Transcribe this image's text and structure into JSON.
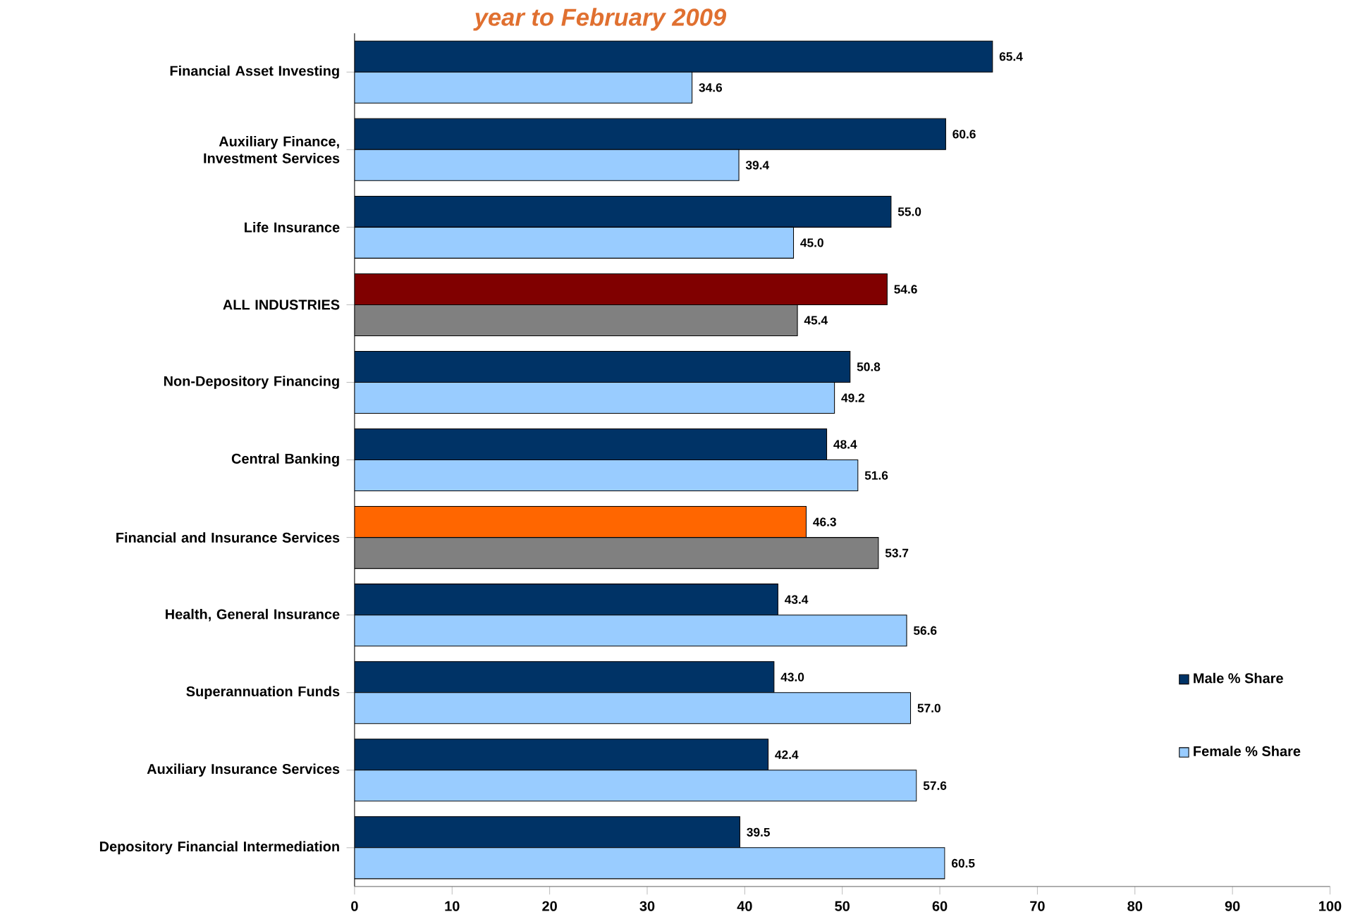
{
  "chart_data": {
    "type": "bar",
    "orientation": "horizontal",
    "title": "year to February 2009",
    "categories": [
      "Financial Asset Investing",
      "Auxiliary Finance, Investment Services",
      "Life Insurance",
      "ALL INDUSTRIES",
      "Non-Depository Financing",
      "Central Banking",
      "Financial and Insurance Services",
      "Health, General Insurance",
      "Superannuation Funds",
      "Auxiliary Insurance Services",
      "Depository Financial Intermediation"
    ],
    "series": [
      {
        "name": "Male % Share",
        "color": "#003366",
        "colors": [
          "#003366",
          "#003366",
          "#003366",
          "#800000",
          "#003366",
          "#003366",
          "#ff6600",
          "#003366",
          "#003366",
          "#003366",
          "#003366"
        ],
        "values": [
          65.4,
          60.6,
          55.0,
          54.6,
          50.8,
          48.4,
          46.3,
          43.4,
          43.0,
          42.4,
          39.5
        ],
        "value_labels": [
          "65.4",
          "60.6",
          "55.0",
          "54.6",
          "50.8",
          "48.4",
          "46.3",
          "43.4",
          "43.0",
          "42.4",
          "39.5"
        ]
      },
      {
        "name": "Female % Share",
        "color": "#99ccff",
        "colors": [
          "#99ccff",
          "#99ccff",
          "#99ccff",
          "#808080",
          "#99ccff",
          "#99ccff",
          "#808080",
          "#99ccff",
          "#99ccff",
          "#99ccff",
          "#99ccff"
        ],
        "values": [
          34.6,
          39.4,
          45.0,
          45.4,
          49.2,
          51.6,
          53.7,
          56.6,
          57.0,
          57.6,
          60.5
        ],
        "value_labels": [
          "34.6",
          "39.4",
          "45.0",
          "45.4",
          "49.2",
          "51.6",
          "53.7",
          "56.6",
          "57.0",
          "57.6",
          "60.5"
        ]
      }
    ],
    "xlim": [
      0,
      100
    ],
    "xticks": [
      0,
      10,
      20,
      30,
      40,
      50,
      60,
      70,
      80,
      90,
      100
    ],
    "legend": "right",
    "grid": false
  }
}
